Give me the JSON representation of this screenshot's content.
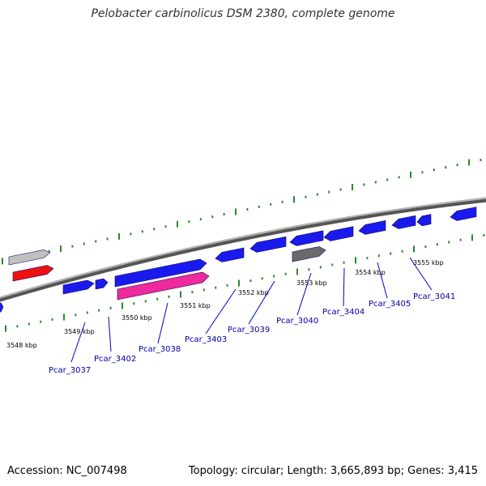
{
  "title": "Pelobacter carbinolicus DSM 2380, complete genome",
  "footer": {
    "accession": "Accession: NC_007498",
    "summary": "Topology: circular; Length: 3,665,893 bp; Genes: 3,415"
  },
  "colors": {
    "forward_gene": "#1a1aee",
    "reverse_gene_blue": "#1a1aee",
    "rna_pink": "#ee2a9c",
    "red_feature": "#ee1111",
    "gray_light": "#c0c0c0",
    "gray_dark": "#6a6a6a",
    "tick": "#2a8a2a",
    "leader": "#0000cc",
    "label": "#0000aa"
  },
  "kbp_labels": [
    "3548 kbp",
    "3549 kbp",
    "3550 kbp",
    "3551 kbp",
    "3552 kbp",
    "3553 kbp",
    "3554 kbp",
    "3555 kbp"
  ],
  "gene_labels": [
    "Pcar_3037",
    "Pcar_3402",
    "Pcar_3038",
    "Pcar_3403",
    "Pcar_3039",
    "Pcar_3040",
    "Pcar_3404",
    "Pcar_3405",
    "Pcar_3041"
  ]
}
